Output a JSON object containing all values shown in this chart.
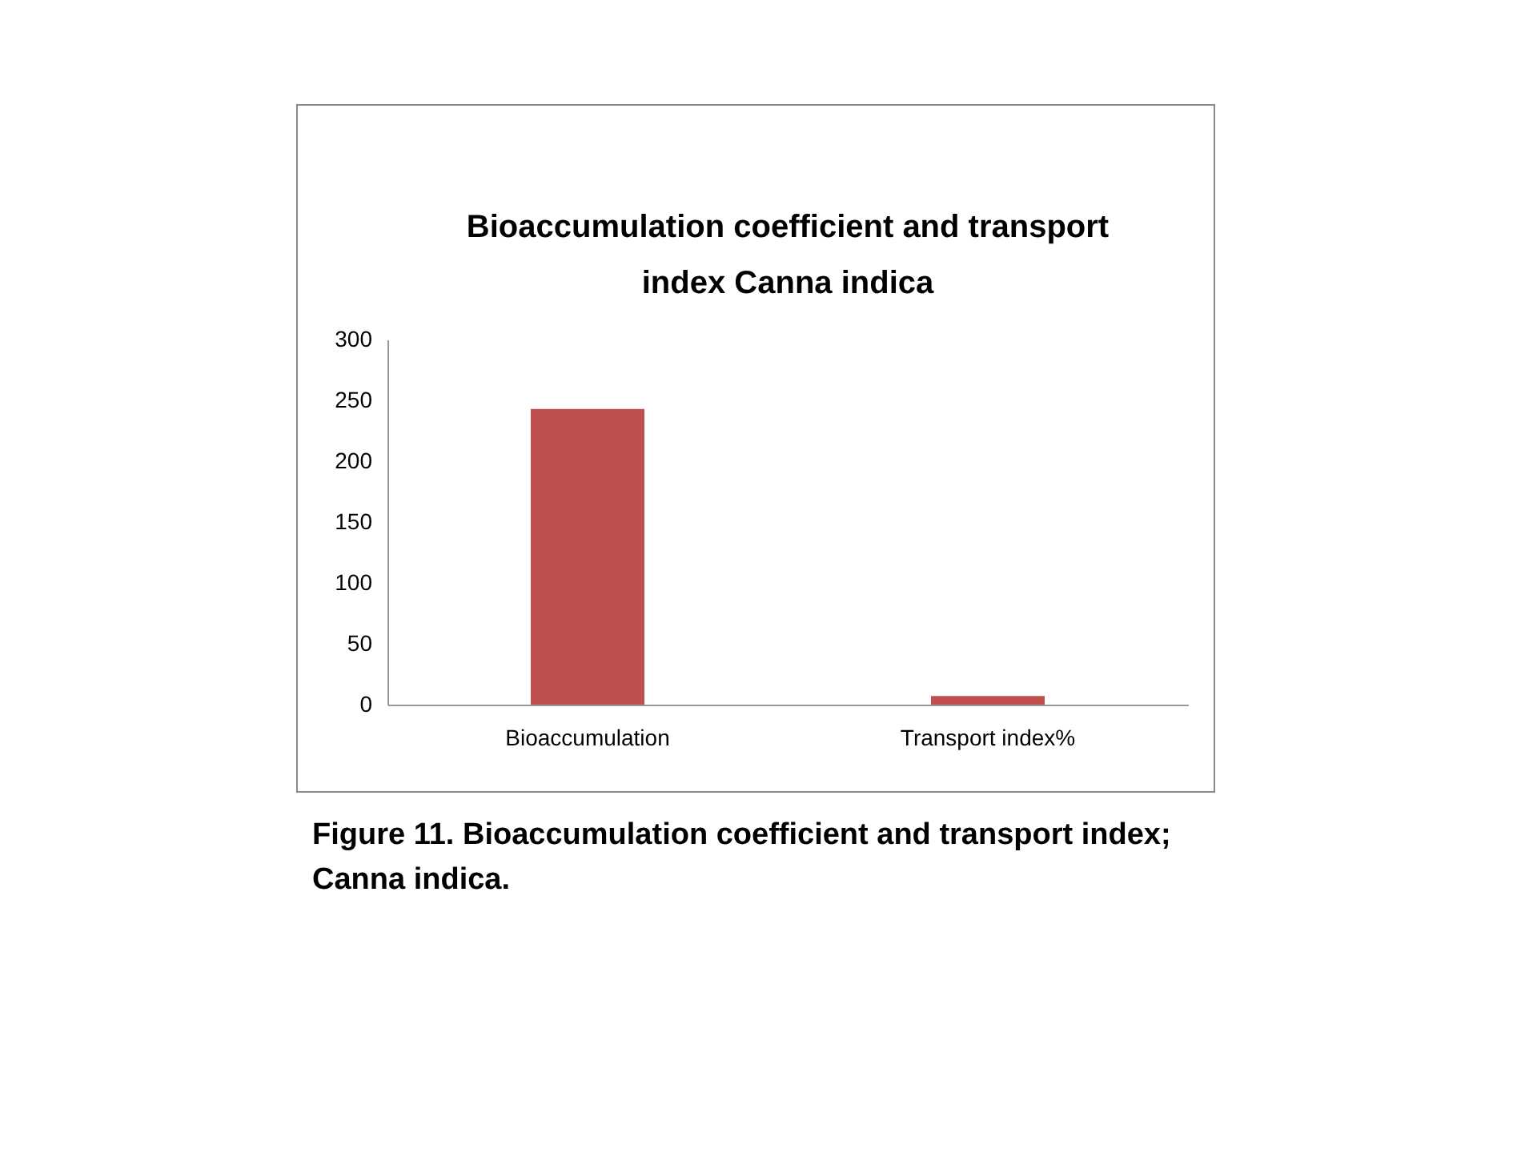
{
  "chart_data": {
    "type": "bar",
    "title": "Bioaccumulation coefficient and transport index Canna indica",
    "categories": [
      "Bioaccumulation",
      "Transport index%"
    ],
    "values": [
      243,
      7
    ],
    "color": "#c0504d",
    "ylim": [
      0,
      300
    ],
    "yticks": [
      0,
      50,
      100,
      150,
      200,
      250,
      300
    ],
    "grid": false,
    "annotations": [
      "Figure 11. Bioaccumulation coefficient and transport index; Canna indica."
    ]
  }
}
